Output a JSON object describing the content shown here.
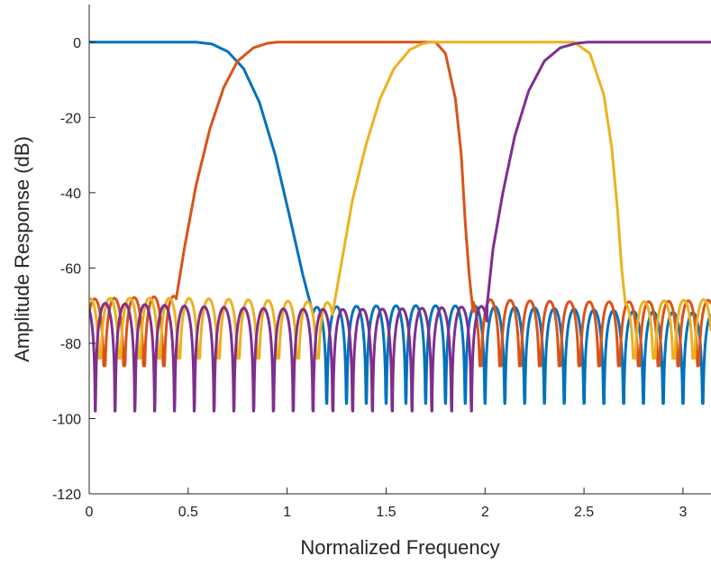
{
  "chart_data": {
    "type": "line",
    "title": "",
    "xlabel": "Normalized Frequency",
    "ylabel": "Amplitude Response (dB)",
    "xlim": [
      0,
      3.1416
    ],
    "ylim": [
      -120,
      10
    ],
    "xticks": [
      0,
      0.5,
      1,
      1.5,
      2,
      2.5,
      3
    ],
    "xtick_labels": [
      "0",
      "0.5",
      "1",
      "1.5",
      "2",
      "2.5",
      "3"
    ],
    "yticks": [
      -120,
      -100,
      -80,
      -60,
      -40,
      -20,
      0
    ],
    "ytick_labels": [
      "-120",
      "-100",
      "-80",
      "-60",
      "-40",
      "-20",
      "0"
    ],
    "grid": false,
    "legend": "none",
    "series": [
      {
        "color": "#0072BD",
        "passband": [
          0,
          0.54
        ],
        "transitions": [
          {
            "x": [
              0.54,
              0.62,
              0.7,
              0.78,
              0.86,
              0.94,
              1.02,
              1.08,
              1.13
            ],
            "y": [
              0,
              -0.5,
              -2.5,
              -7,
              -16,
              -30,
              -48,
              -62,
              -72
            ]
          }
        ],
        "stopband": [
          [
            1.13,
            3.1416
          ]
        ],
        "stop_level": -70,
        "null_depth": -96
      },
      {
        "color": "#D95319",
        "passband": [
          0.95,
          1.75
        ],
        "transitions": [
          {
            "x": [
              0.44,
              0.48,
              0.54,
              0.61,
              0.68,
              0.75,
              0.83,
              0.9,
              0.95
            ],
            "y": [
              -68,
              -55,
              -38,
              -23,
              -12,
              -5,
              -1.5,
              -0.3,
              0
            ]
          },
          {
            "x": [
              1.75,
              1.8,
              1.85,
              1.88,
              1.9,
              1.92,
              1.94
            ],
            "y": [
              0,
              -3,
              -15,
              -30,
              -48,
              -62,
              -72
            ]
          }
        ],
        "stopband": [
          [
            0,
            0.44
          ],
          [
            1.94,
            3.1416
          ]
        ],
        "stop_level": -67,
        "null_depth": -86
      },
      {
        "color": "#EDB120",
        "passband": [
          1.72,
          2.45
        ],
        "transitions": [
          {
            "x": [
              1.23,
              1.27,
              1.33,
              1.4,
              1.47,
              1.54,
              1.62,
              1.68,
              1.72
            ],
            "y": [
              -72,
              -60,
              -42,
              -27,
              -15,
              -7,
              -2,
              -0.5,
              0
            ]
          },
          {
            "x": [
              2.45,
              2.53,
              2.6,
              2.64,
              2.67,
              2.69,
              2.71
            ],
            "y": [
              0,
              -3,
              -14,
              -28,
              -45,
              -60,
              -70
            ]
          }
        ],
        "stopband": [
          [
            0,
            1.23
          ],
          [
            2.71,
            3.1416
          ]
        ],
        "stop_level": -68,
        "null_depth": -84
      },
      {
        "color": "#7E2F8E",
        "passband": [
          2.52,
          3.1416
        ],
        "transitions": [
          {
            "x": [
              2.01,
              2.04,
              2.09,
              2.15,
              2.22,
              2.3,
              2.38,
              2.46,
              2.52
            ],
            "y": [
              -70,
              -55,
              -40,
              -25,
              -13,
              -5,
              -1.5,
              -0.3,
              0
            ]
          }
        ],
        "stopband": [
          [
            0,
            2.01
          ]
        ],
        "stop_level": -69,
        "null_depth": -98
      }
    ]
  }
}
